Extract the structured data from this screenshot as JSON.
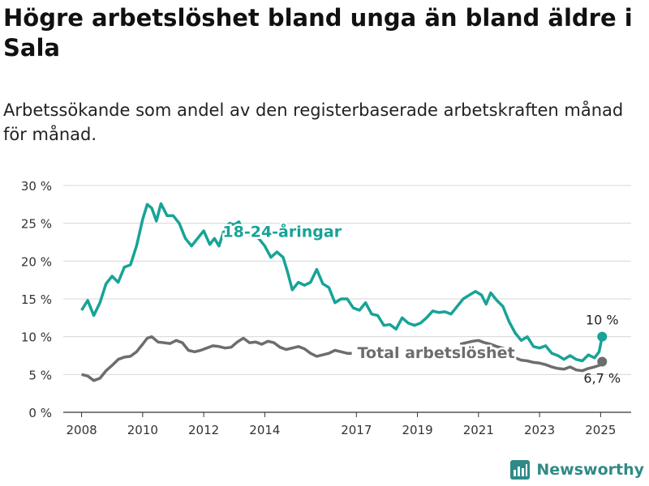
{
  "header": {
    "title": "Högre arbetslöshet bland unga än bland äldre i Sala",
    "subtitle": "Arbetssökande som andel av den registerbaserade arbetskraften månad för månad."
  },
  "brand": {
    "name": "Newsworthy",
    "icon": "newsworthy-logo-icon"
  },
  "colors": {
    "youth": "#17a397",
    "total": "#6d6c6e",
    "grid": "#d7d7d7",
    "axis": "#333333"
  },
  "chart_data": {
    "type": "line",
    "title": "Högre arbetslöshet bland unga än bland äldre i Sala",
    "subtitle": "Arbetssökande som andel av den registerbaserade arbetskraften månad för månad.",
    "xlabel": "",
    "ylabel": "",
    "xlim": [
      2007.4,
      2026.0
    ],
    "ylim": [
      0,
      30
    ],
    "grid": true,
    "x_ticks": [
      2008,
      2010,
      2012,
      2014,
      2017,
      2019,
      2021,
      2023,
      2025
    ],
    "y_ticks": [
      0,
      5,
      10,
      15,
      20,
      25,
      30
    ],
    "y_tick_labels": [
      "0 %",
      "5 %",
      "10 %",
      "15 %",
      "20 %",
      "25 %",
      "30 %"
    ],
    "series": [
      {
        "name": "18-24-åringar",
        "label": "18-24-åringar",
        "end_label": "10 %",
        "points": [
          [
            2008.0,
            13.5
          ],
          [
            2008.2,
            14.8
          ],
          [
            2008.4,
            12.8
          ],
          [
            2008.6,
            14.5
          ],
          [
            2008.8,
            17.0
          ],
          [
            2009.0,
            18.0
          ],
          [
            2009.2,
            17.2
          ],
          [
            2009.4,
            19.2
          ],
          [
            2009.6,
            19.5
          ],
          [
            2009.8,
            22.0
          ],
          [
            2010.0,
            25.5
          ],
          [
            2010.15,
            27.5
          ],
          [
            2010.3,
            27.0
          ],
          [
            2010.45,
            25.3
          ],
          [
            2010.6,
            27.6
          ],
          [
            2010.8,
            26.0
          ],
          [
            2011.0,
            26.0
          ],
          [
            2011.2,
            25.0
          ],
          [
            2011.4,
            23.0
          ],
          [
            2011.6,
            22.0
          ],
          [
            2011.8,
            23.0
          ],
          [
            2012.0,
            24.0
          ],
          [
            2012.2,
            22.2
          ],
          [
            2012.35,
            23.0
          ],
          [
            2012.5,
            22.0
          ],
          [
            2012.7,
            24.5
          ],
          [
            2012.85,
            25.0
          ],
          [
            2013.0,
            24.8
          ],
          [
            2013.15,
            25.2
          ],
          [
            2013.3,
            24.0
          ],
          [
            2013.5,
            23.5
          ],
          [
            2013.8,
            23.0
          ],
          [
            2014.0,
            22.0
          ],
          [
            2014.2,
            20.5
          ],
          [
            2014.4,
            21.2
          ],
          [
            2014.6,
            20.5
          ],
          [
            2014.75,
            18.5
          ],
          [
            2014.9,
            16.2
          ],
          [
            2015.1,
            17.2
          ],
          [
            2015.3,
            16.8
          ],
          [
            2015.5,
            17.2
          ],
          [
            2015.7,
            18.9
          ],
          [
            2015.9,
            17.0
          ],
          [
            2016.1,
            16.5
          ],
          [
            2016.3,
            14.5
          ],
          [
            2016.5,
            15.0
          ],
          [
            2016.7,
            15.0
          ],
          [
            2016.9,
            13.8
          ],
          [
            2017.1,
            13.5
          ],
          [
            2017.3,
            14.5
          ],
          [
            2017.5,
            13.0
          ],
          [
            2017.7,
            12.8
          ],
          [
            2017.9,
            11.5
          ],
          [
            2018.1,
            11.6
          ],
          [
            2018.3,
            11.0
          ],
          [
            2018.5,
            12.5
          ],
          [
            2018.7,
            11.8
          ],
          [
            2018.9,
            11.5
          ],
          [
            2019.1,
            11.8
          ],
          [
            2019.3,
            12.5
          ],
          [
            2019.5,
            13.4
          ],
          [
            2019.7,
            13.2
          ],
          [
            2019.9,
            13.3
          ],
          [
            2020.1,
            13.0
          ],
          [
            2020.3,
            14.0
          ],
          [
            2020.5,
            15.0
          ],
          [
            2020.7,
            15.5
          ],
          [
            2020.9,
            16.0
          ],
          [
            2021.1,
            15.5
          ],
          [
            2021.25,
            14.3
          ],
          [
            2021.4,
            15.8
          ],
          [
            2021.6,
            14.8
          ],
          [
            2021.8,
            14.0
          ],
          [
            2022.0,
            12.0
          ],
          [
            2022.2,
            10.5
          ],
          [
            2022.4,
            9.5
          ],
          [
            2022.6,
            10.0
          ],
          [
            2022.8,
            8.7
          ],
          [
            2023.0,
            8.5
          ],
          [
            2023.2,
            8.8
          ],
          [
            2023.4,
            7.8
          ],
          [
            2023.6,
            7.5
          ],
          [
            2023.8,
            7.0
          ],
          [
            2024.0,
            7.5
          ],
          [
            2024.2,
            7.0
          ],
          [
            2024.4,
            6.8
          ],
          [
            2024.6,
            7.6
          ],
          [
            2024.8,
            7.2
          ],
          [
            2024.95,
            8.0
          ],
          [
            2025.05,
            10.0
          ]
        ]
      },
      {
        "name": "Total arbetslöshet",
        "label": "Total arbetslöshet",
        "end_label": "6,7 %",
        "points": [
          [
            2008.0,
            5.0
          ],
          [
            2008.2,
            4.8
          ],
          [
            2008.4,
            4.2
          ],
          [
            2008.6,
            4.5
          ],
          [
            2008.8,
            5.5
          ],
          [
            2009.0,
            6.2
          ],
          [
            2009.2,
            7.0
          ],
          [
            2009.4,
            7.3
          ],
          [
            2009.6,
            7.4
          ],
          [
            2009.8,
            8.0
          ],
          [
            2010.0,
            9.0
          ],
          [
            2010.15,
            9.8
          ],
          [
            2010.3,
            10.0
          ],
          [
            2010.5,
            9.3
          ],
          [
            2010.7,
            9.2
          ],
          [
            2010.9,
            9.1
          ],
          [
            2011.1,
            9.5
          ],
          [
            2011.3,
            9.2
          ],
          [
            2011.5,
            8.2
          ],
          [
            2011.7,
            8.0
          ],
          [
            2011.9,
            8.2
          ],
          [
            2012.1,
            8.5
          ],
          [
            2012.3,
            8.8
          ],
          [
            2012.5,
            8.7
          ],
          [
            2012.7,
            8.5
          ],
          [
            2012.9,
            8.6
          ],
          [
            2013.1,
            9.3
          ],
          [
            2013.3,
            9.8
          ],
          [
            2013.5,
            9.2
          ],
          [
            2013.7,
            9.3
          ],
          [
            2013.9,
            9.0
          ],
          [
            2014.1,
            9.4
          ],
          [
            2014.3,
            9.2
          ],
          [
            2014.5,
            8.6
          ],
          [
            2014.7,
            8.3
          ],
          [
            2014.9,
            8.5
          ],
          [
            2015.1,
            8.7
          ],
          [
            2015.3,
            8.4
          ],
          [
            2015.5,
            7.8
          ],
          [
            2015.7,
            7.4
          ],
          [
            2015.9,
            7.6
          ],
          [
            2016.1,
            7.8
          ],
          [
            2016.3,
            8.2
          ],
          [
            2016.5,
            8.0
          ],
          [
            2016.7,
            7.8
          ],
          [
            2016.85,
            7.8
          ]
        ],
        "segment2": [
          [
            2020.4,
            9.0
          ],
          [
            2020.6,
            9.2
          ],
          [
            2020.8,
            9.4
          ],
          [
            2021.0,
            9.5
          ],
          [
            2021.2,
            9.2
          ],
          [
            2021.4,
            9.0
          ],
          [
            2021.6,
            8.7
          ],
          [
            2021.8,
            8.5
          ],
          [
            2022.0,
            7.8
          ],
          [
            2022.2,
            7.2
          ],
          [
            2022.4,
            6.9
          ],
          [
            2022.6,
            6.8
          ],
          [
            2022.8,
            6.6
          ],
          [
            2023.0,
            6.5
          ],
          [
            2023.2,
            6.3
          ],
          [
            2023.4,
            6.0
          ],
          [
            2023.6,
            5.8
          ],
          [
            2023.8,
            5.7
          ],
          [
            2024.0,
            6.0
          ],
          [
            2024.2,
            5.6
          ],
          [
            2024.4,
            5.5
          ],
          [
            2024.6,
            5.8
          ],
          [
            2024.8,
            6.0
          ],
          [
            2024.95,
            6.2
          ],
          [
            2025.05,
            6.7
          ]
        ]
      }
    ]
  }
}
